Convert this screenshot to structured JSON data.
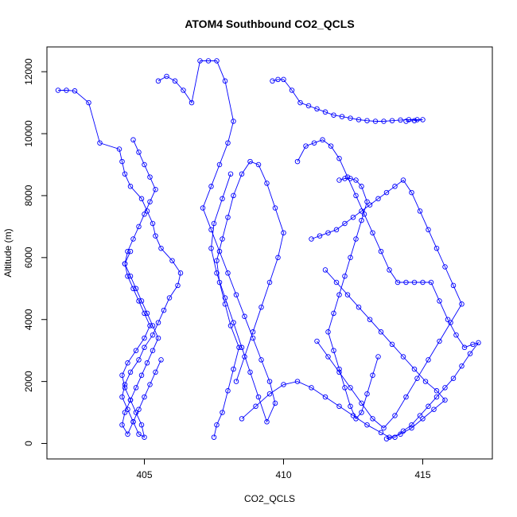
{
  "chart_data": {
    "type": "scatter",
    "title": "ATOM4 Southbound CO2_QCLS",
    "xlabel": "CO2_QCLS",
    "ylabel": "Altitude (m)",
    "xlim": [
      401.5,
      417.5
    ],
    "ylim": [
      -500,
      12800
    ],
    "x_ticks": [
      405,
      410,
      415
    ],
    "y_ticks": [
      0,
      2000,
      4000,
      6000,
      8000,
      10000,
      12000
    ],
    "grid": false,
    "legend": "none",
    "marker": "open-circle",
    "connect_points": true,
    "color": "#0000ff",
    "series": [
      {
        "x": [
          401.9,
          402.2,
          402.5,
          403.0,
          403.4,
          404.1,
          404.2,
          404.3,
          404.5,
          404.9,
          405.1,
          405.3,
          405.4,
          405.6,
          406.0,
          406.3,
          406.2,
          405.9,
          405.7,
          405.5,
          405.3,
          405.0,
          404.8,
          404.5,
          404.3,
          404.2,
          404.4,
          404.6,
          404.8,
          405.0,
          404.9,
          404.7,
          404.5,
          404.3,
          404.2,
          404.4,
          404.7,
          405.0,
          405.2,
          405.0,
          404.8,
          404.6,
          404.4,
          404.3,
          404.5
        ],
        "y": [
          11400,
          11400,
          11380,
          11000,
          9700,
          9500,
          9100,
          8700,
          8300,
          7900,
          7500,
          7100,
          6700,
          6300,
          5900,
          5500,
          5100,
          4700,
          4300,
          3900,
          3500,
          3100,
          2700,
          2300,
          1900,
          1500,
          1100,
          700,
          300,
          200,
          600,
          1000,
          1400,
          1800,
          2200,
          2600,
          3000,
          3400,
          3800,
          4200,
          4600,
          5000,
          5400,
          5800,
          6200
        ]
      },
      {
        "x": [
          404.6,
          404.8,
          405.0,
          405.2,
          405.4,
          405.2,
          405.0,
          404.8,
          404.6,
          404.4,
          404.3,
          404.5,
          404.7,
          404.9,
          405.1,
          405.3,
          405.5,
          405.3,
          405.1,
          404.9,
          404.7,
          404.5,
          404.3,
          404.2,
          404.4,
          404.6,
          404.8,
          405.0,
          405.2,
          405.4,
          405.6
        ],
        "y": [
          9800,
          9400,
          9000,
          8600,
          8200,
          7800,
          7400,
          7000,
          6600,
          6200,
          5800,
          5400,
          5000,
          4600,
          4200,
          3800,
          3400,
          3000,
          2600,
          2200,
          1800,
          1400,
          1000,
          600,
          300,
          700,
          1100,
          1500,
          1900,
          2300,
          2700
        ]
      },
      {
        "x": [
          405.5,
          405.8,
          406.1,
          406.4,
          406.7,
          407.0,
          407.3,
          407.6,
          407.9,
          408.2,
          408.0,
          407.7,
          407.4,
          407.1,
          407.4,
          407.7,
          408.0,
          408.3,
          408.6,
          408.9,
          409.2,
          409.5,
          409.7,
          409.4,
          409.1,
          408.8,
          408.5,
          408.2,
          407.9,
          407.6,
          407.4,
          407.5,
          407.8,
          408.1
        ],
        "y": [
          11700,
          11850,
          11700,
          11400,
          11000,
          12350,
          12350,
          12350,
          11700,
          10400,
          9700,
          9000,
          8300,
          7600,
          6900,
          6200,
          5500,
          4800,
          4100,
          3400,
          2700,
          2000,
          1300,
          700,
          1500,
          2300,
          3100,
          3900,
          4700,
          5500,
          6300,
          7100,
          7900,
          8700
        ]
      },
      {
        "x": [
          407.5,
          407.6,
          407.8,
          408.0,
          408.2,
          408.4,
          408.1,
          407.9,
          407.7,
          407.6,
          407.8,
          408.0,
          408.2,
          408.5,
          408.8,
          409.1,
          409.4,
          409.7,
          410.0,
          409.8,
          409.5,
          409.2,
          408.9,
          408.6,
          408.3
        ],
        "y": [
          200,
          600,
          1000,
          1700,
          2400,
          3100,
          3800,
          4500,
          5200,
          5900,
          6600,
          7300,
          8000,
          8700,
          9100,
          9000,
          8400,
          7600,
          6800,
          6000,
          5200,
          4400,
          3600,
          2800,
          2000
        ]
      },
      {
        "x": [
          409.6,
          409.8,
          410.0,
          410.3,
          410.6,
          410.9,
          411.2,
          411.5,
          411.8,
          412.1,
          412.4,
          412.7,
          413.0,
          413.3,
          413.6,
          413.9,
          414.2,
          414.5,
          414.8,
          415.0,
          414.7,
          414.4
        ],
        "y": [
          11700,
          11750,
          11750,
          11400,
          11000,
          10900,
          10800,
          10700,
          10600,
          10550,
          10500,
          10450,
          10420,
          10400,
          10400,
          10420,
          10440,
          10450,
          10450,
          10450,
          10420,
          10400
        ]
      },
      {
        "x": [
          410.5,
          410.8,
          411.1,
          411.4,
          411.7,
          412.0,
          412.3,
          412.6,
          412.9,
          413.2,
          413.5,
          413.8,
          414.1,
          414.4,
          414.7,
          415.0,
          415.3,
          415.6,
          415.9,
          416.2,
          416.5,
          416.8,
          417.0,
          416.7,
          416.4,
          416.1,
          415.8,
          415.5,
          415.2,
          414.9,
          414.6,
          414.3,
          414.0,
          413.7
        ],
        "y": [
          9100,
          9600,
          9700,
          9800,
          9600,
          9200,
          8600,
          8000,
          7400,
          6800,
          6200,
          5600,
          5200,
          5200,
          5200,
          5200,
          5200,
          4600,
          4000,
          3500,
          3100,
          3200,
          3250,
          2900,
          2500,
          2100,
          1800,
          1500,
          1200,
          900,
          600,
          400,
          200,
          150
        ]
      },
      {
        "x": [
          411.0,
          411.3,
          411.6,
          411.9,
          412.2,
          412.5,
          412.8,
          413.1,
          413.4,
          413.7,
          414.0,
          414.3,
          414.6,
          414.9,
          415.2,
          415.5,
          415.8,
          416.1,
          416.4,
          416.0,
          415.6,
          415.2,
          414.8,
          414.4,
          414.0,
          413.6,
          413.2,
          412.8,
          412.4,
          412.0,
          411.6,
          411.2
        ],
        "y": [
          6600,
          6700,
          6800,
          6900,
          7100,
          7300,
          7500,
          7700,
          7900,
          8100,
          8300,
          8500,
          8100,
          7500,
          6900,
          6300,
          5700,
          5100,
          4500,
          3900,
          3300,
          2700,
          2100,
          1500,
          900,
          500,
          800,
          1300,
          1800,
          2300,
          2800,
          3300
        ]
      },
      {
        "x": [
          412.0,
          412.2,
          412.4,
          412.6,
          412.8,
          413.0,
          412.8,
          412.6,
          412.4,
          412.2,
          412.0,
          411.8,
          411.6,
          411.8,
          412.0,
          412.2,
          412.4,
          412.6,
          412.8,
          413.0,
          413.2,
          413.4
        ],
        "y": [
          8500,
          8550,
          8550,
          8500,
          8300,
          7800,
          7200,
          6600,
          6000,
          5400,
          4800,
          4200,
          3600,
          3000,
          2400,
          1800,
          1200,
          800,
          1000,
          1600,
          2200,
          2800
        ]
      },
      {
        "x": [
          408.5,
          409.0,
          409.5,
          410.0,
          410.5,
          411.0,
          411.5,
          412.0,
          412.5,
          413.0,
          413.5,
          413.8,
          414.2,
          414.6,
          415.0,
          415.4,
          415.8,
          415.5,
          415.1,
          414.7,
          414.3,
          413.9,
          413.5,
          413.1,
          412.7,
          412.3,
          411.9,
          411.5
        ],
        "y": [
          800,
          1200,
          1600,
          1900,
          2000,
          1800,
          1500,
          1200,
          900,
          600,
          350,
          200,
          300,
          500,
          800,
          1100,
          1400,
          1700,
          2000,
          2400,
          2800,
          3200,
          3600,
          4000,
          4400,
          4800,
          5200,
          5600
        ]
      }
    ]
  }
}
